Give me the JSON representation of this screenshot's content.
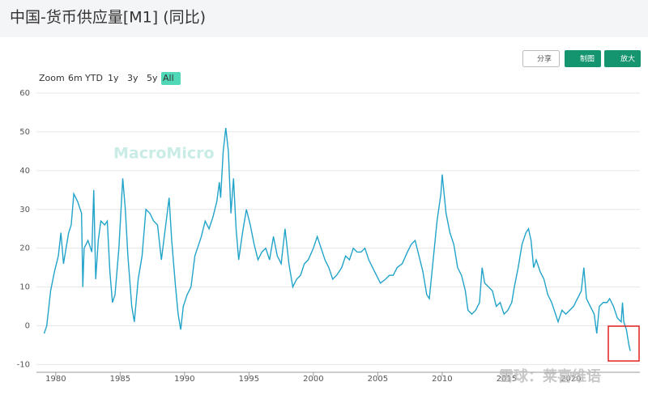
{
  "chart_data": {
    "type": "line",
    "title": "中国-货币供应量[M1] (同比)",
    "buttons": [
      "分享",
      "制图",
      "放大"
    ],
    "range_selector": {
      "label": "Zoom",
      "options": [
        "6m",
        "YTD",
        "1y",
        "3y",
        "5y",
        "All"
      ],
      "active": 5
    },
    "watermarks": [
      "MacroMicro",
      "雪球：莱喜维语"
    ],
    "color": "#22a3c9",
    "grid": true,
    "xlim": [
      1978.5,
      2025.35
    ],
    "ylim": [
      -12,
      60
    ],
    "xticks": [
      1980,
      1985,
      1990,
      1995,
      2000,
      2005,
      2010,
      2015,
      2020
    ],
    "yticks": [
      -10,
      0,
      10,
      20,
      30,
      40,
      50,
      60
    ],
    "x": [
      1979.1,
      1979.3,
      1979.6,
      1979.9,
      1980.2,
      1980.4,
      1980.6,
      1980.8,
      1981.0,
      1981.2,
      1981.4,
      1981.7,
      1982.0,
      1982.1,
      1982.2,
      1982.5,
      1982.8,
      1982.95,
      1983.1,
      1983.3,
      1983.5,
      1983.8,
      1984.0,
      1984.2,
      1984.4,
      1984.6,
      1984.9,
      1985.1,
      1985.2,
      1985.4,
      1985.6,
      1985.9,
      1986.1,
      1986.4,
      1986.7,
      1987.0,
      1987.3,
      1987.6,
      1987.9,
      1988.2,
      1988.5,
      1988.8,
      1989.0,
      1989.3,
      1989.5,
      1989.7,
      1989.9,
      1990.2,
      1990.5,
      1990.8,
      1991.0,
      1991.3,
      1991.6,
      1991.9,
      1992.2,
      1992.5,
      1992.7,
      1992.8,
      1993.0,
      1993.2,
      1993.4,
      1993.6,
      1993.8,
      1994.0,
      1994.2,
      1994.5,
      1994.8,
      1995.1,
      1995.4,
      1995.7,
      1996.0,
      1996.3,
      1996.6,
      1996.9,
      1997.2,
      1997.5,
      1997.8,
      1998.1,
      1998.4,
      1998.7,
      1999.0,
      1999.3,
      1999.6,
      2000.0,
      2000.3,
      2000.6,
      2000.9,
      2001.2,
      2001.5,
      2001.8,
      2002.2,
      2002.5,
      2002.8,
      2003.1,
      2003.4,
      2003.7,
      2004.0,
      2004.3,
      2004.6,
      2004.9,
      2005.2,
      2005.6,
      2005.9,
      2006.2,
      2006.5,
      2006.9,
      2007.3,
      2007.6,
      2007.9,
      2008.2,
      2008.5,
      2008.8,
      2009.0,
      2009.3,
      2009.6,
      2009.9,
      2010.0,
      2010.3,
      2010.6,
      2010.9,
      2011.2,
      2011.5,
      2011.8,
      2012.0,
      2012.3,
      2012.6,
      2012.9,
      2013.1,
      2013.3,
      2013.6,
      2013.9,
      2014.2,
      2014.5,
      2014.8,
      2015.1,
      2015.4,
      2015.6,
      2015.9,
      2016.2,
      2016.5,
      2016.7,
      2016.9,
      2017.1,
      2017.3,
      2017.6,
      2017.9,
      2018.2,
      2018.5,
      2018.8,
      2019.0,
      2019.3,
      2019.6,
      2019.9,
      2020.2,
      2020.5,
      2020.8,
      2021.0,
      2021.2,
      2021.5,
      2021.8,
      2022.0,
      2022.2,
      2022.5,
      2022.8,
      2023.0,
      2023.3,
      2023.6,
      2023.9,
      2024.0,
      2024.1,
      2024.3,
      2024.5,
      2024.6
    ],
    "values": [
      -2,
      0,
      9,
      14,
      18,
      24,
      16,
      20,
      24,
      26,
      34,
      32,
      29,
      10,
      20,
      22,
      19,
      35,
      12,
      22,
      27,
      26,
      27,
      14,
      6,
      8,
      20,
      32,
      38,
      30,
      18,
      5,
      1,
      12,
      18,
      30,
      29,
      27,
      26,
      17,
      25,
      33,
      22,
      10,
      3,
      -1,
      5,
      8,
      10,
      18,
      20,
      23,
      27,
      25,
      28,
      32,
      37,
      33,
      45,
      51,
      45,
      29,
      38,
      25,
      17,
      24,
      30,
      26,
      21,
      17,
      19,
      20,
      17,
      23,
      18,
      16,
      25,
      16,
      10,
      12,
      13,
      16,
      17,
      20,
      23,
      20,
      17,
      15,
      12,
      13,
      15,
      18,
      17,
      20,
      19,
      19,
      20,
      17,
      15,
      13,
      11,
      12,
      13,
      13,
      15,
      16,
      19,
      21,
      22,
      18,
      14,
      8,
      7,
      17,
      27,
      34,
      39,
      29,
      24,
      21,
      15,
      13,
      9,
      4,
      3,
      4,
      6,
      15,
      11,
      10,
      9,
      5,
      6,
      3,
      4,
      6,
      10,
      15,
      21,
      24,
      25,
      22,
      15,
      17,
      14,
      12,
      8,
      6,
      3,
      1,
      4,
      3,
      4,
      5,
      7,
      9,
      15,
      7,
      5,
      3,
      -2,
      5,
      6,
      6,
      7,
      5,
      2,
      1,
      6,
      1,
      -1,
      -5,
      -6.5
    ]
  }
}
